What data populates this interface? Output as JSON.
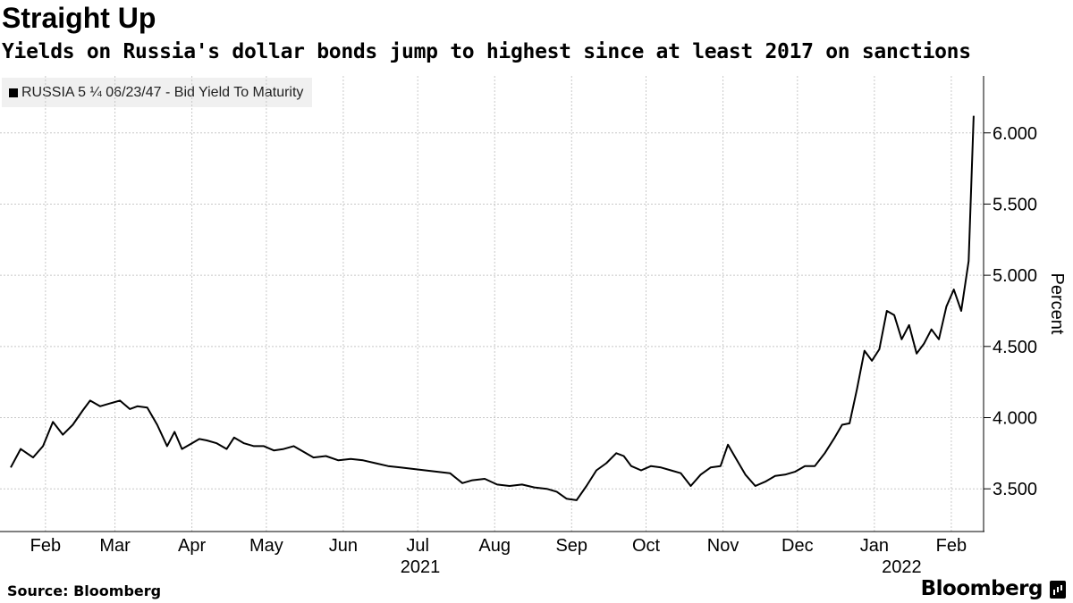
{
  "title": "Straight Up",
  "subtitle": "Yields on Russia's dollar bonds jump to highest since at least 2017 on sanctions",
  "source": "Source: Bloomberg",
  "brand": "Bloomberg",
  "chart_data": {
    "type": "line",
    "title": "Straight Up",
    "subtitle": "Yields on Russia's dollar bonds jump to highest since at least 2017 on sanctions",
    "ylabel": "Percent",
    "xlabel": "",
    "ylim": [
      3.2,
      6.4
    ],
    "xlim": [
      "2021-02-01",
      "2022-02-28"
    ],
    "grid": true,
    "legend_position": "top-left",
    "y_ticks": [
      "3.500",
      "4.000",
      "4.500",
      "5.000",
      "5.500",
      "6.000"
    ],
    "y_tick_values": [
      3.5,
      4.0,
      4.5,
      5.0,
      5.5,
      6.0
    ],
    "x_ticks": [
      {
        "label": "Feb",
        "date": "2021-02-15"
      },
      {
        "label": "Mar",
        "date": "2021-03-15"
      },
      {
        "label": "Apr",
        "date": "2021-04-15"
      },
      {
        "label": "May",
        "date": "2021-05-15"
      },
      {
        "label": "Jun",
        "date": "2021-06-15"
      },
      {
        "label": "Jul",
        "date": "2021-07-15"
      },
      {
        "label": "Aug",
        "date": "2021-08-15"
      },
      {
        "label": "Sep",
        "date": "2021-09-15"
      },
      {
        "label": "Oct",
        "date": "2021-10-15"
      },
      {
        "label": "Nov",
        "date": "2021-11-15"
      },
      {
        "label": "Dec",
        "date": "2021-12-15"
      },
      {
        "label": "Jan",
        "date": "2022-01-15"
      },
      {
        "label": "Feb",
        "date": "2022-02-15"
      }
    ],
    "year_labels": [
      {
        "label": "2021",
        "date": "2021-07-16"
      },
      {
        "label": "2022",
        "date": "2022-01-26"
      }
    ],
    "series": [
      {
        "name": "RUSSIA 5 ¼ 06/23/47 - Bid Yield To Maturity",
        "color": "#000000",
        "x": [
          "2021-02-01",
          "2021-02-05",
          "2021-02-10",
          "2021-02-14",
          "2021-02-18",
          "2021-02-22",
          "2021-02-26",
          "2021-03-02",
          "2021-03-05",
          "2021-03-09",
          "2021-03-13",
          "2021-03-17",
          "2021-03-21",
          "2021-03-24",
          "2021-03-28",
          "2021-04-01",
          "2021-04-05",
          "2021-04-08",
          "2021-04-11",
          "2021-04-15",
          "2021-04-18",
          "2021-04-21",
          "2021-04-25",
          "2021-04-29",
          "2021-05-02",
          "2021-05-06",
          "2021-05-10",
          "2021-05-14",
          "2021-05-18",
          "2021-05-22",
          "2021-05-26",
          "2021-05-30",
          "2021-06-03",
          "2021-06-08",
          "2021-06-13",
          "2021-06-18",
          "2021-06-23",
          "2021-06-28",
          "2021-07-03",
          "2021-07-08",
          "2021-07-13",
          "2021-07-18",
          "2021-07-23",
          "2021-07-28",
          "2021-08-02",
          "2021-08-06",
          "2021-08-11",
          "2021-08-16",
          "2021-08-21",
          "2021-08-26",
          "2021-08-31",
          "2021-09-05",
          "2021-09-09",
          "2021-09-13",
          "2021-09-17",
          "2021-09-21",
          "2021-09-25",
          "2021-09-29",
          "2021-10-03",
          "2021-10-06",
          "2021-10-09",
          "2021-10-13",
          "2021-10-17",
          "2021-10-21",
          "2021-10-25",
          "2021-10-29",
          "2021-11-02",
          "2021-11-06",
          "2021-11-10",
          "2021-11-14",
          "2021-11-17",
          "2021-11-20",
          "2021-11-24",
          "2021-11-28",
          "2021-12-02",
          "2021-12-06",
          "2021-12-10",
          "2021-12-14",
          "2021-12-18",
          "2021-12-22",
          "2021-12-26",
          "2021-12-30",
          "2022-01-02",
          "2022-01-05",
          "2022-01-08",
          "2022-01-11",
          "2022-01-14",
          "2022-01-17",
          "2022-01-20",
          "2022-01-23",
          "2022-01-26",
          "2022-01-29",
          "2022-02-01",
          "2022-02-04",
          "2022-02-07",
          "2022-02-10",
          "2022-02-13",
          "2022-02-16",
          "2022-02-19",
          "2022-02-22",
          "2022-02-24"
        ],
        "values": [
          3.65,
          3.78,
          3.72,
          3.8,
          3.97,
          3.88,
          3.95,
          4.05,
          4.12,
          4.08,
          4.1,
          4.12,
          4.06,
          4.08,
          4.07,
          3.95,
          3.8,
          3.9,
          3.78,
          3.82,
          3.85,
          3.84,
          3.82,
          3.78,
          3.86,
          3.82,
          3.8,
          3.8,
          3.77,
          3.78,
          3.8,
          3.76,
          3.72,
          3.73,
          3.7,
          3.71,
          3.7,
          3.68,
          3.66,
          3.65,
          3.64,
          3.63,
          3.62,
          3.61,
          3.54,
          3.56,
          3.57,
          3.53,
          3.52,
          3.53,
          3.51,
          3.5,
          3.48,
          3.43,
          3.42,
          3.52,
          3.63,
          3.68,
          3.75,
          3.73,
          3.66,
          3.63,
          3.66,
          3.65,
          3.63,
          3.61,
          3.52,
          3.6,
          3.65,
          3.66,
          3.81,
          3.72,
          3.6,
          3.52,
          3.55,
          3.59,
          3.6,
          3.62,
          3.66,
          3.66,
          3.75,
          3.86,
          3.95,
          3.96,
          4.2,
          4.47,
          4.4,
          4.48,
          4.75,
          4.72,
          4.55,
          4.65,
          4.45,
          4.52,
          4.62,
          4.55,
          4.78,
          4.9,
          4.75,
          5.1,
          6.12
        ]
      }
    ]
  }
}
